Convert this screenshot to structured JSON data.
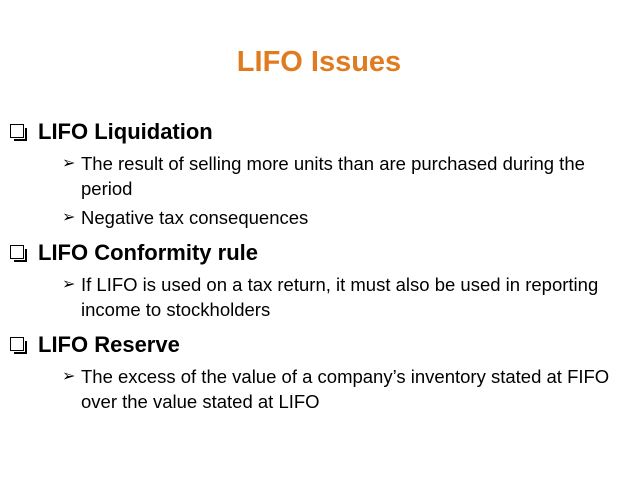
{
  "slide": {
    "title": "LIFO Issues",
    "title_color": "#E07B1F",
    "sections": [
      {
        "heading": "LIFO Liquidation",
        "points": [
          "The result of selling more units than are purchased during the period",
          "Negative tax consequences"
        ]
      },
      {
        "heading": "LIFO Conformity rule",
        "points": [
          "If LIFO is used on a tax return, it must also be used in reporting income to stockholders"
        ]
      },
      {
        "heading": "LIFO Reserve",
        "points": [
          "The excess of the value of a company’s inventory stated at FIFO over the value stated at LIFO"
        ]
      }
    ],
    "icons": {
      "level1": "square-bullet-icon",
      "level2": "arrowhead-bullet-icon"
    }
  }
}
